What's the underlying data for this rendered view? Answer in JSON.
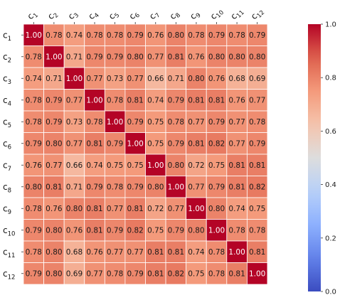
{
  "chart_data": {
    "type": "heatmap",
    "title": "",
    "xlabel": "",
    "ylabel": "",
    "x_labels": [
      "c1",
      "c2",
      "c3",
      "c4",
      "c5",
      "c6",
      "c7",
      "c8",
      "c9",
      "c10",
      "c11",
      "c12"
    ],
    "y_labels": [
      "c1",
      "c2",
      "c3",
      "c4",
      "c5",
      "c6",
      "c7",
      "c8",
      "c9",
      "c10",
      "c11",
      "c12"
    ],
    "label_base": "c",
    "label_indices": [
      "1",
      "2",
      "3",
      "4",
      "5",
      "6",
      "7",
      "8",
      "9",
      "10",
      "11",
      "12"
    ],
    "matrix": [
      [
        1.0,
        0.78,
        0.74,
        0.78,
        0.78,
        0.79,
        0.76,
        0.8,
        0.78,
        0.79,
        0.78,
        0.79
      ],
      [
        0.78,
        1.0,
        0.71,
        0.79,
        0.79,
        0.8,
        0.77,
        0.81,
        0.76,
        0.8,
        0.8,
        0.8
      ],
      [
        0.74,
        0.71,
        1.0,
        0.77,
        0.73,
        0.77,
        0.66,
        0.71,
        0.8,
        0.76,
        0.68,
        0.69
      ],
      [
        0.78,
        0.79,
        0.77,
        1.0,
        0.78,
        0.81,
        0.74,
        0.79,
        0.81,
        0.81,
        0.76,
        0.77
      ],
      [
        0.78,
        0.79,
        0.73,
        0.78,
        1.0,
        0.79,
        0.75,
        0.78,
        0.77,
        0.79,
        0.77,
        0.78
      ],
      [
        0.79,
        0.8,
        0.77,
        0.81,
        0.79,
        1.0,
        0.75,
        0.79,
        0.81,
        0.82,
        0.77,
        0.79
      ],
      [
        0.76,
        0.77,
        0.66,
        0.74,
        0.75,
        0.75,
        1.0,
        0.8,
        0.72,
        0.75,
        0.81,
        0.81
      ],
      [
        0.8,
        0.81,
        0.71,
        0.79,
        0.78,
        0.79,
        0.8,
        1.0,
        0.77,
        0.79,
        0.81,
        0.82
      ],
      [
        0.78,
        0.76,
        0.8,
        0.81,
        0.77,
        0.81,
        0.72,
        0.77,
        1.0,
        0.8,
        0.74,
        0.75
      ],
      [
        0.79,
        0.8,
        0.76,
        0.81,
        0.79,
        0.82,
        0.75,
        0.79,
        0.8,
        1.0,
        0.78,
        0.78
      ],
      [
        0.78,
        0.8,
        0.68,
        0.76,
        0.77,
        0.77,
        0.81,
        0.81,
        0.74,
        0.78,
        1.0,
        0.81
      ],
      [
        0.79,
        0.8,
        0.69,
        0.77,
        0.78,
        0.79,
        0.81,
        0.82,
        0.75,
        0.78,
        0.81,
        1.0
      ]
    ],
    "colormap": "coolwarm",
    "value_range": [
      0.0,
      1.0
    ],
    "colorbar_ticks": [
      "0.0",
      "0.2",
      "0.4",
      "0.6",
      "0.8",
      "1.0"
    ],
    "colorbar_tick_values": [
      0.0,
      0.2,
      0.4,
      0.6,
      0.8,
      1.0
    ],
    "x_tick_rotation": "45deg",
    "x_tick_position": "top",
    "legend": "right",
    "grid": "white-lines",
    "cell_labels": true
  }
}
